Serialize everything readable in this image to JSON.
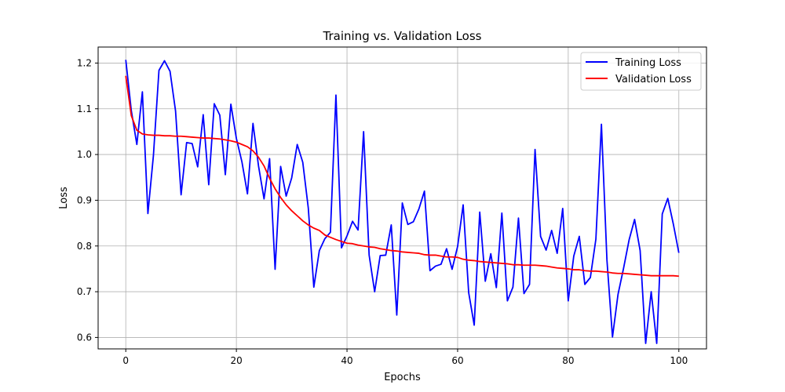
{
  "chart_data": {
    "type": "line",
    "title": "Training vs. Validation Loss",
    "xlabel": "Epochs",
    "ylabel": "Loss",
    "xlim": [
      -5,
      105
    ],
    "ylim": [
      0.575,
      1.235
    ],
    "xticks": [
      0,
      20,
      40,
      60,
      80,
      100
    ],
    "yticks": [
      0.6,
      0.7,
      0.8,
      0.9,
      1.0,
      1.1,
      1.2
    ],
    "xtick_labels": [
      "0",
      "20",
      "40",
      "60",
      "80",
      "100"
    ],
    "ytick_labels": [
      "0.6",
      "0.7",
      "0.8",
      "0.9",
      "1.0",
      "1.1",
      "1.2"
    ],
    "grid": true,
    "legend_position": "top-right",
    "series": [
      {
        "name": "Training Loss",
        "color": "#0000ff",
        "x": [
          0,
          1,
          2,
          3,
          4,
          5,
          6,
          7,
          8,
          9,
          10,
          11,
          12,
          13,
          14,
          15,
          16,
          17,
          18,
          19,
          20,
          21,
          22,
          23,
          24,
          25,
          26,
          27,
          28,
          29,
          30,
          31,
          32,
          33,
          34,
          35,
          36,
          37,
          38,
          39,
          40,
          41,
          42,
          43,
          44,
          45,
          46,
          47,
          48,
          49,
          50,
          51,
          52,
          53,
          54,
          55,
          56,
          57,
          58,
          59,
          60,
          61,
          62,
          63,
          64,
          65,
          66,
          67,
          68,
          69,
          70,
          71,
          72,
          73,
          74,
          75,
          76,
          77,
          78,
          79,
          80,
          81,
          82,
          83,
          84,
          85,
          86,
          87,
          88,
          89,
          90,
          91,
          92,
          93,
          94,
          95,
          96,
          97,
          98,
          99,
          100
        ],
        "values": [
          1.207,
          1.096,
          1.022,
          1.137,
          0.871,
          0.998,
          1.184,
          1.205,
          1.182,
          1.095,
          0.912,
          1.026,
          1.024,
          0.973,
          1.087,
          0.934,
          1.111,
          1.086,
          0.956,
          1.11,
          1.035,
          0.984,
          0.914,
          1.068,
          0.975,
          0.903,
          0.991,
          0.749,
          0.974,
          0.909,
          0.949,
          1.022,
          0.983,
          0.883,
          0.71,
          0.79,
          0.816,
          0.83,
          1.13,
          0.796,
          0.822,
          0.854,
          0.835,
          1.05,
          0.78,
          0.7,
          0.779,
          0.78,
          0.846,
          0.649,
          0.894,
          0.847,
          0.853,
          0.881,
          0.92,
          0.746,
          0.756,
          0.76,
          0.794,
          0.749,
          0.799,
          0.89,
          0.698,
          0.627,
          0.874,
          0.723,
          0.783,
          0.709,
          0.872,
          0.68,
          0.71,
          0.861,
          0.696,
          0.716,
          1.011,
          0.821,
          0.791,
          0.834,
          0.784,
          0.882,
          0.68,
          0.778,
          0.821,
          0.716,
          0.731,
          0.815,
          1.066,
          0.769,
          0.601,
          0.694,
          0.751,
          0.813,
          0.858,
          0.79,
          0.587,
          0.7,
          0.587,
          0.87,
          0.904,
          0.848,
          0.785
        ]
      },
      {
        "name": "Validation Loss",
        "color": "#ff0000",
        "x": [
          0,
          1,
          2,
          3,
          4,
          5,
          6,
          7,
          8,
          9,
          10,
          11,
          12,
          13,
          14,
          15,
          16,
          17,
          18,
          19,
          20,
          21,
          22,
          23,
          24,
          25,
          26,
          27,
          28,
          29,
          30,
          31,
          32,
          33,
          34,
          35,
          36,
          37,
          38,
          39,
          40,
          41,
          42,
          43,
          44,
          45,
          46,
          47,
          48,
          49,
          50,
          51,
          52,
          53,
          54,
          55,
          56,
          57,
          58,
          59,
          60,
          61,
          62,
          63,
          64,
          65,
          66,
          67,
          68,
          69,
          70,
          71,
          72,
          73,
          74,
          75,
          76,
          77,
          78,
          79,
          80,
          81,
          82,
          83,
          84,
          85,
          86,
          87,
          88,
          89,
          90,
          91,
          92,
          93,
          94,
          95,
          96,
          97,
          98,
          99,
          100
        ],
        "values": [
          1.172,
          1.085,
          1.053,
          1.045,
          1.043,
          1.042,
          1.042,
          1.041,
          1.041,
          1.04,
          1.04,
          1.039,
          1.038,
          1.037,
          1.036,
          1.036,
          1.035,
          1.034,
          1.032,
          1.03,
          1.027,
          1.022,
          1.017,
          1.008,
          0.994,
          0.975,
          0.948,
          0.925,
          0.906,
          0.89,
          0.877,
          0.866,
          0.855,
          0.846,
          0.839,
          0.834,
          0.824,
          0.819,
          0.814,
          0.81,
          0.806,
          0.805,
          0.802,
          0.8,
          0.798,
          0.797,
          0.794,
          0.792,
          0.79,
          0.789,
          0.787,
          0.786,
          0.785,
          0.784,
          0.781,
          0.78,
          0.78,
          0.778,
          0.776,
          0.776,
          0.775,
          0.771,
          0.769,
          0.768,
          0.766,
          0.765,
          0.764,
          0.763,
          0.762,
          0.761,
          0.759,
          0.759,
          0.758,
          0.758,
          0.758,
          0.757,
          0.756,
          0.754,
          0.752,
          0.751,
          0.75,
          0.748,
          0.748,
          0.746,
          0.745,
          0.745,
          0.744,
          0.743,
          0.741,
          0.74,
          0.74,
          0.739,
          0.738,
          0.737,
          0.736,
          0.735,
          0.735,
          0.735,
          0.735,
          0.735,
          0.734
        ]
      }
    ]
  }
}
